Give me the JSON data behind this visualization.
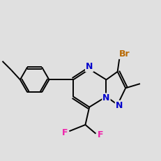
{
  "bg_color": "#e0e0e0",
  "bond_color": "#000000",
  "N_color": "#0000cc",
  "Br_color": "#b86800",
  "F_color": "#ee22aa",
  "line_width": 1.4,
  "doffset": 0.012,
  "notes": "3-Bromo-7-(difluoromethyl)-5-(4-ethylphenyl)-2-methylpyrazolo[1,5-a]pyrimidine"
}
